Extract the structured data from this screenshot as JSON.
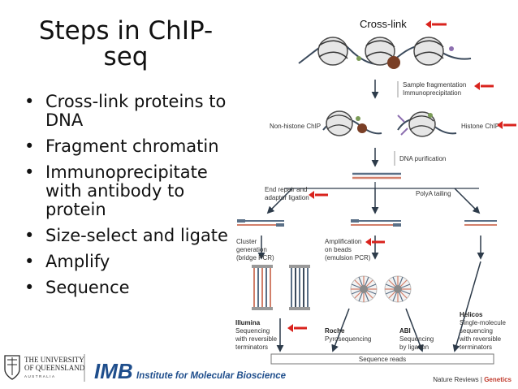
{
  "slide": {
    "title": "Steps in ChIP-seq",
    "bullets": [
      "Cross-link proteins to DNA",
      "Fragment chromatin",
      "Immunoprecipitate with antibody to protein",
      "Size-select and ligate",
      "Amplify",
      "Sequence"
    ]
  },
  "diagram": {
    "crosslink_label": "Cross-link",
    "step_fragmentation": "Sample fragmentation",
    "step_ip": "Immunoprecipitation",
    "non_histone": "Non-histone ChIP",
    "histone": "Histone ChIP",
    "dna_purification": "DNA purification",
    "end_repair_1": "End repair and",
    "end_repair_2": "adaptor ligation",
    "polya": "PolyA tailing",
    "cluster_1": "Cluster",
    "cluster_2": "generation",
    "cluster_3": "(bridge PCR)",
    "amp_1": "Amplification",
    "amp_2": "on beads",
    "amp_3": "(emulsion PCR)",
    "illumina_title": "Illumina",
    "illumina_1": "Sequencing",
    "illumina_2": "with reversible",
    "illumina_3": "terminators",
    "roche_title": "Roche",
    "roche_1": "Pyrosequencing",
    "abi_title": "ABI",
    "abi_1": "Sequencing",
    "abi_2": "by ligation",
    "helicos_title": "Helicos",
    "helicos_1": "Single-molecule",
    "helicos_2": "sequencing",
    "helicos_3": "with reversible",
    "helicos_4": "terminators",
    "sequence_reads": "Sequence reads"
  },
  "footer": {
    "uq_line1": "THE UNIVERSITY",
    "uq_line2": "OF QUEENSLAND",
    "uq_line3": "AUSTRALIA",
    "imb_short": "IMB",
    "imb_full": "Institute for Molecular Bioscience",
    "nature_prefix": "Nature Reviews | ",
    "nature_suffix": "Genetics"
  },
  "colors": {
    "arrow_red": "#d9231d",
    "imb_blue": "#1f4e8c",
    "strand_blue": "#5a6f86",
    "strand_red": "#d27f6a",
    "bead_brown": "#7a3f26"
  }
}
